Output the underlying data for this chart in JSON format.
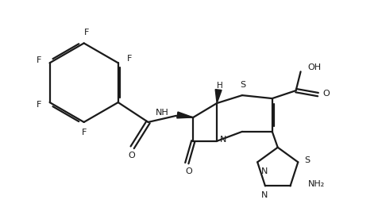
{
  "bg_color": "#ffffff",
  "line_color": "#1a1a1a",
  "line_width": 1.6,
  "figsize": [
    4.77,
    2.76
  ],
  "dpi": 100,
  "xlim": [
    0.0,
    4.77
  ],
  "ylim": [
    0.0,
    2.76
  ]
}
